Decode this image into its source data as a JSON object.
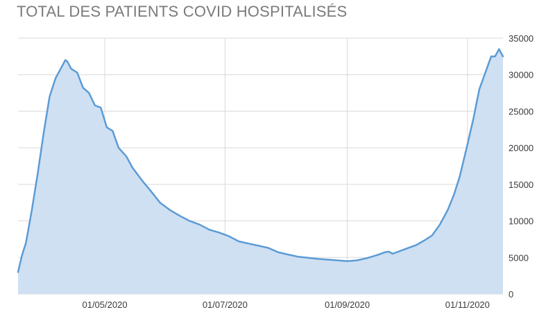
{
  "chart_data": {
    "type": "area",
    "title": "TOTAL DES PATIENTS COVID HOSPITALISÉS",
    "xlabel": "",
    "ylabel": "",
    "x_tick_labels": [
      "01/05/2020",
      "01/07/2020",
      "01/09/2020",
      "01/11/2020"
    ],
    "x_tick_dates": [
      "2020-05-01",
      "2020-07-01",
      "2020-09-01",
      "2020-11-01"
    ],
    "y_tick_labels": [
      "0",
      "5000",
      "10000",
      "15000",
      "20000",
      "25000",
      "30000",
      "35000"
    ],
    "ylim": [
      0,
      35000
    ],
    "xlim": [
      "2020-03-18",
      "2020-11-19"
    ],
    "grid": true,
    "legend": "none",
    "series": [
      {
        "line_color": "#5b9bd5",
        "fill_color": "#cfe0f3",
        "points": [
          [
            "2020-03-18",
            3000
          ],
          [
            "2020-03-20",
            5300
          ],
          [
            "2020-03-22",
            7000
          ],
          [
            "2020-03-25",
            11500
          ],
          [
            "2020-03-28",
            16500
          ],
          [
            "2020-03-31",
            22000
          ],
          [
            "2020-04-03",
            27000
          ],
          [
            "2020-04-06",
            29500
          ],
          [
            "2020-04-09",
            31000
          ],
          [
            "2020-04-11",
            32000
          ],
          [
            "2020-04-12",
            31800
          ],
          [
            "2020-04-14",
            30800
          ],
          [
            "2020-04-17",
            30300
          ],
          [
            "2020-04-20",
            28200
          ],
          [
            "2020-04-23",
            27500
          ],
          [
            "2020-04-26",
            25800
          ],
          [
            "2020-04-29",
            25500
          ],
          [
            "2020-05-02",
            22800
          ],
          [
            "2020-05-05",
            22300
          ],
          [
            "2020-05-08",
            20000
          ],
          [
            "2020-05-12",
            18800
          ],
          [
            "2020-05-15",
            17300
          ],
          [
            "2020-05-20",
            15500
          ],
          [
            "2020-05-24",
            14200
          ],
          [
            "2020-05-29",
            12500
          ],
          [
            "2020-06-03",
            11500
          ],
          [
            "2020-06-08",
            10700
          ],
          [
            "2020-06-13",
            10000
          ],
          [
            "2020-06-18",
            9500
          ],
          [
            "2020-06-23",
            8800
          ],
          [
            "2020-06-28",
            8400
          ],
          [
            "2020-07-03",
            7900
          ],
          [
            "2020-07-08",
            7200
          ],
          [
            "2020-07-13",
            6900
          ],
          [
            "2020-07-18",
            6600
          ],
          [
            "2020-07-23",
            6300
          ],
          [
            "2020-07-28",
            5700
          ],
          [
            "2020-08-02",
            5400
          ],
          [
            "2020-08-07",
            5100
          ],
          [
            "2020-08-12",
            4950
          ],
          [
            "2020-08-17",
            4800
          ],
          [
            "2020-08-22",
            4700
          ],
          [
            "2020-08-27",
            4600
          ],
          [
            "2020-09-01",
            4500
          ],
          [
            "2020-09-06",
            4600
          ],
          [
            "2020-09-11",
            4900
          ],
          [
            "2020-09-16",
            5300
          ],
          [
            "2020-09-20",
            5700
          ],
          [
            "2020-09-22",
            5800
          ],
          [
            "2020-09-24",
            5500
          ],
          [
            "2020-09-28",
            5900
          ],
          [
            "2020-10-02",
            6300
          ],
          [
            "2020-10-06",
            6700
          ],
          [
            "2020-10-10",
            7300
          ],
          [
            "2020-10-14",
            8000
          ],
          [
            "2020-10-18",
            9500
          ],
          [
            "2020-10-22",
            11500
          ],
          [
            "2020-10-25",
            13500
          ],
          [
            "2020-10-28",
            16000
          ],
          [
            "2020-11-01",
            20500
          ],
          [
            "2020-11-04",
            24000
          ],
          [
            "2020-11-07",
            28000
          ],
          [
            "2020-11-09",
            29500
          ],
          [
            "2020-11-11",
            31000
          ],
          [
            "2020-11-13",
            32500
          ],
          [
            "2020-11-15",
            32500
          ],
          [
            "2020-11-17",
            33500
          ],
          [
            "2020-11-19",
            32500
          ]
        ]
      }
    ]
  }
}
